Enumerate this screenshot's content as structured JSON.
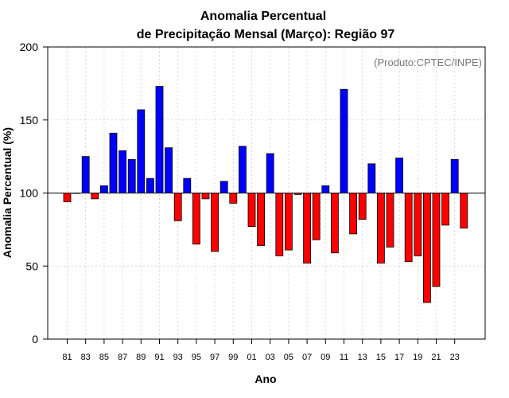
{
  "chart_data": {
    "type": "bar",
    "title_line1": "Anomalia Percentual",
    "title_line2": "de Precipitação Mensal (Março): Região 97",
    "xlabel": "Ano",
    "ylabel": "Anomalia Percentual (%)",
    "credit": "(Produto:CPTEC/INPE)",
    "baseline": 100,
    "ylim": [
      0,
      200
    ],
    "yticks": [
      0,
      50,
      100,
      150,
      200
    ],
    "grid": true,
    "colors": {
      "above": "#0000ff",
      "below": "#ff0000",
      "edge": "#000000",
      "grid": "#cccccc"
    },
    "categories": [
      "81",
      "82",
      "83",
      "84",
      "85",
      "86",
      "87",
      "88",
      "89",
      "90",
      "91",
      "92",
      "93",
      "94",
      "95",
      "96",
      "97",
      "98",
      "99",
      "00",
      "01",
      "02",
      "03",
      "04",
      "05",
      "06",
      "07",
      "08",
      "09",
      "10",
      "11",
      "12",
      "13",
      "14",
      "15",
      "16",
      "17",
      "18",
      "19",
      "20",
      "21",
      "22",
      "23",
      "24"
    ],
    "xtick_labels": [
      "81",
      "83",
      "85",
      "87",
      "89",
      "91",
      "93",
      "95",
      "97",
      "99",
      "01",
      "03",
      "05",
      "07",
      "09",
      "11",
      "13",
      "15",
      "17",
      "19",
      "21",
      "23"
    ],
    "values": [
      94,
      100,
      125,
      96,
      105,
      141,
      129,
      123,
      157,
      110,
      173,
      131,
      81,
      110,
      65,
      96,
      60,
      108,
      93,
      132,
      77,
      64,
      127,
      57,
      61,
      99,
      52,
      68,
      105,
      59,
      171,
      72,
      82,
      120,
      52,
      63,
      124,
      53,
      57,
      25,
      36,
      78,
      123,
      76
    ]
  }
}
